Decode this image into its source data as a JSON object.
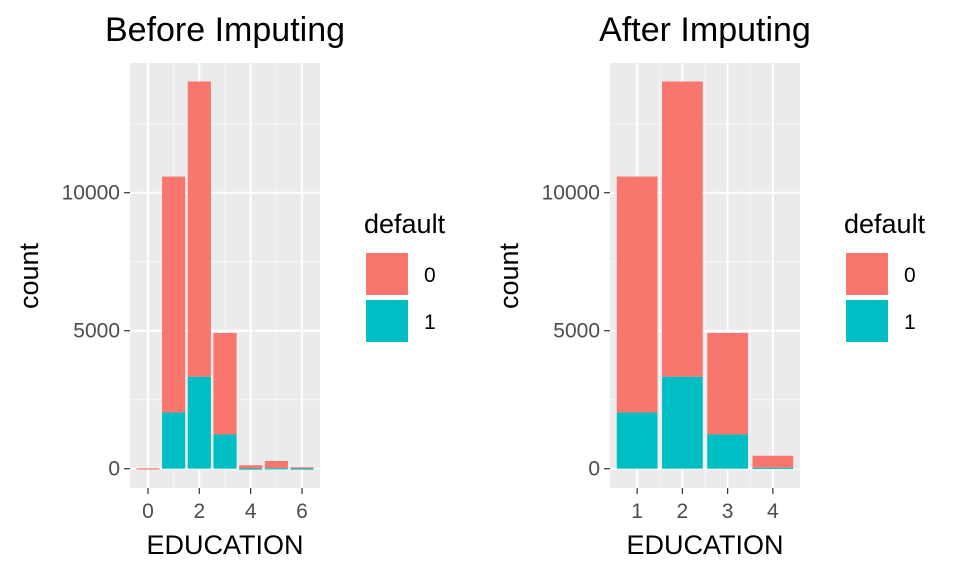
{
  "chart_data": [
    {
      "type": "bar",
      "stacked": true,
      "title": "Before Imputing",
      "xlabel": "EDUCATION",
      "ylabel": "count",
      "x": [
        0,
        1,
        2,
        3,
        4,
        5,
        6
      ],
      "xticks": [
        0,
        2,
        4,
        6
      ],
      "yticks": [
        0,
        5000,
        10000
      ],
      "xlim": [
        -0.7,
        6.7
      ],
      "ylim": [
        -700,
        14700
      ],
      "series": [
        {
          "name": "1",
          "color": "#00BFC4",
          "values": [
            0,
            2036,
            3330,
            1237,
            7,
            18,
            8
          ]
        },
        {
          "name": "0",
          "color": "#F8766D",
          "values": [
            14,
            8549,
            10700,
            3680,
            116,
            262,
            43
          ]
        }
      ],
      "legend": {
        "title": "default",
        "placement": "right",
        "entries": [
          "0",
          "1"
        ]
      }
    },
    {
      "type": "bar",
      "stacked": true,
      "title": "After Imputing",
      "xlabel": "EDUCATION",
      "ylabel": "count",
      "x": [
        1,
        2,
        3,
        4
      ],
      "xticks": [
        1,
        2,
        3,
        4
      ],
      "yticks": [
        0,
        5000,
        10000
      ],
      "xlim": [
        0.4,
        4.6
      ],
      "ylim": [
        -700,
        14700
      ],
      "series": [
        {
          "name": "1",
          "color": "#00BFC4",
          "values": [
            2036,
            3330,
            1237,
            33
          ]
        },
        {
          "name": "0",
          "color": "#F8766D",
          "values": [
            8549,
            10700,
            3680,
            435
          ]
        }
      ],
      "legend": {
        "title": "default",
        "placement": "right",
        "entries": [
          "0",
          "1"
        ]
      }
    }
  ]
}
